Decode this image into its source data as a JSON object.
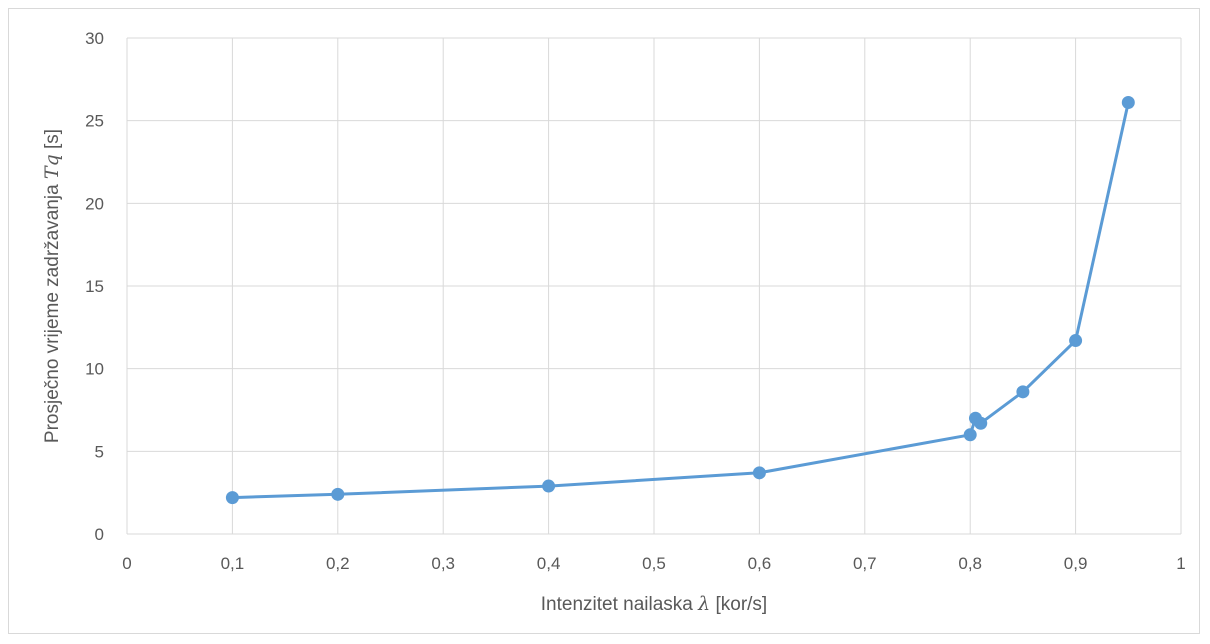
{
  "chart_data": {
    "type": "line",
    "title": "",
    "xlabel": {
      "prefix": "Intenzitet nailaska ",
      "symbol": "λ",
      "unit": " [kor/s]"
    },
    "ylabel": {
      "prefix": "Prosječno vrijeme zadržavanja ",
      "symbol": "Tq",
      "unit": " [s]"
    },
    "xlim": [
      0,
      1
    ],
    "ylim": [
      0,
      30
    ],
    "x_ticks": [
      "0",
      "0,1",
      "0,2",
      "0,3",
      "0,4",
      "0,5",
      "0,6",
      "0,7",
      "0,8",
      "0,9",
      "1"
    ],
    "y_ticks": [
      "0",
      "5",
      "10",
      "15",
      "20",
      "25",
      "30"
    ],
    "grid": true,
    "legend": "none",
    "series": [
      {
        "color": "#5b9bd5",
        "x": [
          0.1,
          0.2,
          0.4,
          0.6,
          0.8,
          0.805,
          0.81,
          0.85,
          0.9,
          0.95
        ],
        "y": [
          2.2,
          2.4,
          2.9,
          3.7,
          6.0,
          7.0,
          6.7,
          8.6,
          11.7,
          26.1
        ]
      }
    ]
  }
}
